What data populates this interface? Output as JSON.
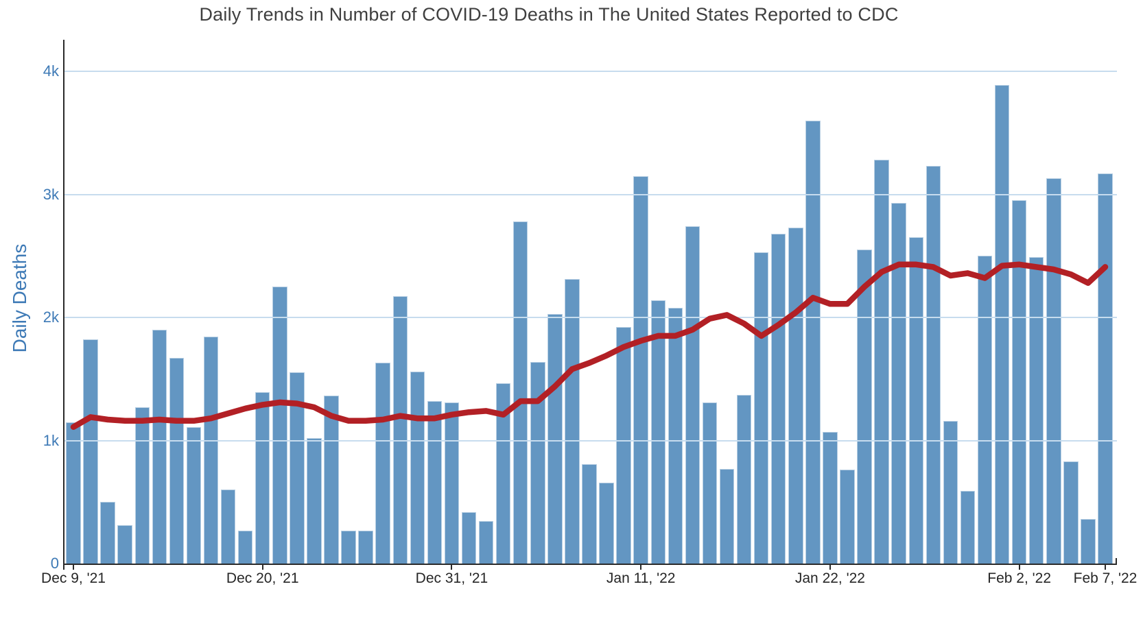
{
  "chart_data": {
    "type": "bar",
    "title": "Daily Trends in Number of COVID-19 Deaths in The United States Reported to CDC",
    "ylabel": "Daily Deaths",
    "xlabel": "",
    "grid": "horizontal",
    "legend": "none",
    "ylim": [
      0,
      4280
    ],
    "y_tick_labels": [
      "0",
      "1k",
      "2k",
      "3k",
      "4k"
    ],
    "y_tick_values": [
      0,
      1000,
      2000,
      3000,
      4000
    ],
    "x_tick_labels": [
      "Dec 9, '21",
      "Dec 20, '21",
      "Dec 31, '21",
      "Jan 11, '22",
      "Jan 22, '22",
      "Feb 2, '22",
      "Feb 7, '22"
    ],
    "x_tick_day_index": [
      0,
      11,
      22,
      33,
      44,
      55,
      60
    ],
    "dates": [
      "Dec 9",
      "Dec 10",
      "Dec 11",
      "Dec 12",
      "Dec 13",
      "Dec 14",
      "Dec 15",
      "Dec 16",
      "Dec 17",
      "Dec 18",
      "Dec 19",
      "Dec 20",
      "Dec 21",
      "Dec 22",
      "Dec 23",
      "Dec 24",
      "Dec 25",
      "Dec 26",
      "Dec 27",
      "Dec 28",
      "Dec 29",
      "Dec 30",
      "Dec 31",
      "Jan 1",
      "Jan 2",
      "Jan 3",
      "Jan 4",
      "Jan 5",
      "Jan 6",
      "Jan 7",
      "Jan 8",
      "Jan 9",
      "Jan 10",
      "Jan 11",
      "Jan 12",
      "Jan 13",
      "Jan 14",
      "Jan 15",
      "Jan 16",
      "Jan 17",
      "Jan 18",
      "Jan 19",
      "Jan 20",
      "Jan 21",
      "Jan 22",
      "Jan 23",
      "Jan 24",
      "Jan 25",
      "Jan 26",
      "Jan 27",
      "Jan 28",
      "Jan 29",
      "Jan 30",
      "Jan 31",
      "Feb 1",
      "Feb 2",
      "Feb 3",
      "Feb 4",
      "Feb 5",
      "Feb 6",
      "Feb 7"
    ],
    "bar_series": {
      "color": "#6396c2",
      "values": [
        1150,
        1820,
        500,
        310,
        1270,
        1900,
        1670,
        1110,
        1845,
        600,
        270,
        1390,
        2250,
        1555,
        1020,
        1365,
        270,
        265,
        1630,
        2170,
        1560,
        1320,
        1310,
        420,
        345,
        1465,
        2780,
        1640,
        2030,
        2310,
        810,
        660,
        1920,
        3150,
        2140,
        2080,
        2740,
        1310,
        770,
        1370,
        2530,
        2680,
        2730,
        3600,
        1070,
        765,
        2550,
        3280,
        2930,
        2650,
        3230,
        1160,
        590,
        2500,
        3890,
        2950,
        2490,
        3130,
        830,
        360,
        3170
      ]
    },
    "line_series": {
      "color": "#b22025",
      "values": [
        1110,
        1190,
        1170,
        1160,
        1160,
        1170,
        1160,
        1160,
        1180,
        1220,
        1260,
        1290,
        1310,
        1300,
        1270,
        1200,
        1160,
        1160,
        1170,
        1200,
        1180,
        1180,
        1210,
        1230,
        1240,
        1210,
        1320,
        1320,
        1440,
        1580,
        1630,
        1690,
        1760,
        1810,
        1850,
        1850,
        1900,
        1990,
        2020,
        1950,
        1850,
        1940,
        2040,
        2160,
        2110,
        2110,
        2250,
        2370,
        2430,
        2430,
        2410,
        2340,
        2360,
        2320,
        2420,
        2430,
        2410,
        2390,
        2350,
        2280,
        2410
      ]
    }
  },
  "colors": {
    "background": "#ffffff",
    "bar": "#6396c2",
    "trend_line": "#b22025",
    "gridline": "#c7dcee",
    "axis": "#2a2a2a",
    "y_tick_text": "#3e7ab6",
    "x_tick_text": "#262626",
    "title_text": "#3f3f3f"
  }
}
